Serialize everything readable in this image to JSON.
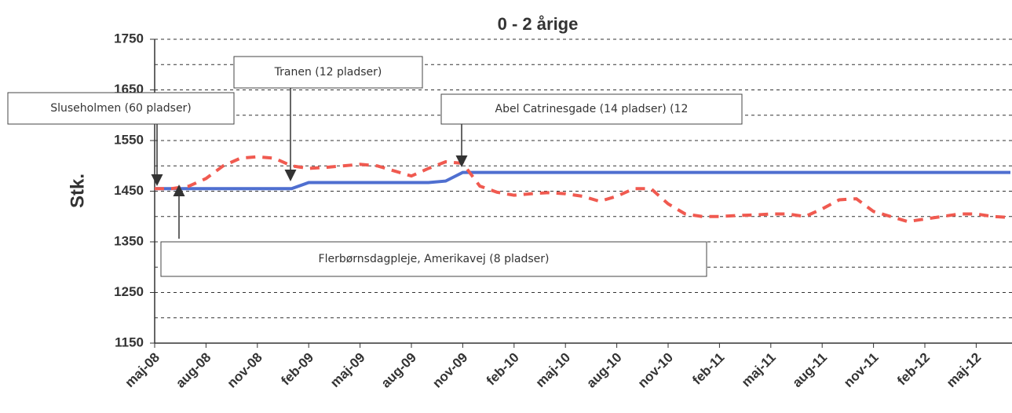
{
  "chart_data": {
    "type": "line",
    "title": "0 - 2 årige",
    "y_label": "Stk.",
    "categories": [
      "maj-08",
      null,
      null,
      "aug-08",
      null,
      null,
      "nov-08",
      null,
      null,
      "feb-09",
      null,
      null,
      "maj-09",
      null,
      null,
      "aug-09",
      null,
      null,
      "nov-09",
      null,
      null,
      "feb-10",
      null,
      null,
      "maj-10",
      null,
      null,
      "aug-10",
      null,
      null,
      "nov-10",
      null,
      null,
      "feb-11",
      null,
      null,
      "maj-11",
      null,
      null,
      "aug-11",
      null,
      null,
      "nov-11",
      null,
      null,
      "feb-12",
      null,
      null,
      "maj-12",
      null,
      null
    ],
    "series": [
      {
        "color": "#4f6fd0",
        "dash": false,
        "values": [
          1455,
          1455,
          1455,
          1455,
          1455,
          1455,
          1455,
          1455,
          1455,
          1467,
          1467,
          1467,
          1467,
          1467,
          1467,
          1467,
          1467,
          1470,
          1487,
          1487,
          1487,
          1487,
          1487,
          1487,
          1487,
          1487,
          1487,
          1487,
          1487,
          1487,
          1487,
          1487,
          1487,
          1487,
          1487,
          1487,
          1487,
          1487,
          1487,
          1487,
          1487,
          1487,
          1487,
          1487,
          1487,
          1487,
          1487,
          1487,
          1487,
          1487,
          1487
        ]
      },
      {
        "color": "#f05a50",
        "dash": true,
        "values": [
          1455,
          1455,
          1460,
          1475,
          1500,
          1515,
          1518,
          1515,
          1500,
          1495,
          1497,
          1500,
          1503,
          1500,
          1490,
          1480,
          1495,
          1508,
          1505,
          1460,
          1448,
          1442,
          1445,
          1447,
          1445,
          1440,
          1430,
          1440,
          1455,
          1455,
          1425,
          1405,
          1400,
          1400,
          1402,
          1403,
          1405,
          1405,
          1400,
          1415,
          1433,
          1435,
          1410,
          1400,
          1390,
          1395,
          1400,
          1405,
          1405,
          1400,
          1398
        ]
      }
    ],
    "ylim": [
      1150,
      1750
    ],
    "yticks": [
      1150,
      1250,
      1350,
      1450,
      1550,
      1650,
      1750
    ],
    "minor_grid": [
      1200,
      1300,
      1400,
      1500,
      1600,
      1700
    ],
    "grid": true,
    "annotations": [
      "Sluseholmen (60 pladser)",
      "Tranen (12 pladser)",
      "Abel Catrinesgade (14 pladser) (12",
      "Flerbørnsdagpleje, Amerikavej (8 pladser)"
    ]
  }
}
